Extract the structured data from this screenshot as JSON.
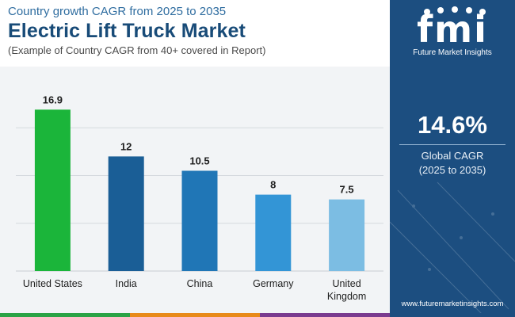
{
  "header": {
    "subtitle": "Country growth CAGR from 2025 to 2035",
    "title": "Electric Lift Truck Market",
    "note": "(Example of Country CAGR from 40+ covered in Report)"
  },
  "chart_data": {
    "type": "bar",
    "categories": [
      "United States",
      "India",
      "China",
      "Germany",
      "United Kingdom"
    ],
    "values": [
      16.9,
      12,
      10.5,
      8,
      7.5
    ],
    "value_labels": [
      "16.9",
      "12",
      "10.5",
      "8",
      "7.5"
    ],
    "ylim": [
      0,
      20
    ],
    "gridlines": [
      5,
      10,
      15
    ],
    "colors": [
      "#1bb53a",
      "#1a5e96",
      "#2076b6",
      "#3395d6",
      "#7cbde3"
    ],
    "title": "",
    "xlabel": "",
    "ylabel": ""
  },
  "panel": {
    "logo_text": "fmi",
    "logo_tagline": "Future Market Insights",
    "cagr_value": "14.6%",
    "cagr_label": "Global CAGR",
    "cagr_period": "(2025 to 2035)",
    "website": "www.futuremarketinsights.com"
  },
  "footer_colors": [
    "#2aa345",
    "#e88a1a",
    "#7a3b8f",
    "#1c4e80"
  ],
  "colors": {
    "title_blue": "#184b78",
    "panel_blue": "#1c4e80"
  }
}
